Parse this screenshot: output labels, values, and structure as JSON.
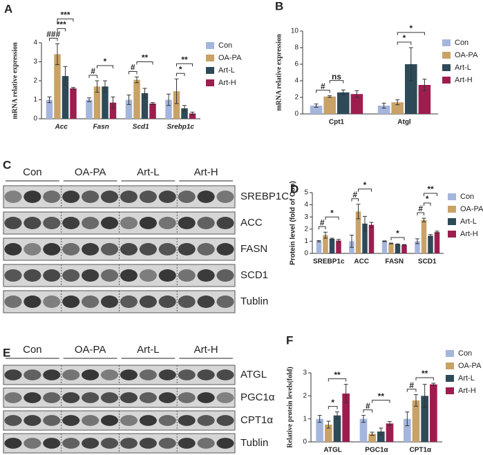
{
  "chart_data": [
    {
      "type": "bar",
      "panel": "A",
      "y_label": "mRNA relative expression",
      "italic_categories": true,
      "categories": [
        "Acc",
        "Fasn",
        "Scd1",
        "Srebp1c"
      ],
      "ylim": [
        0,
        4
      ],
      "yticks": [
        0,
        1,
        2,
        3,
        4
      ],
      "series": [
        {
          "name": "Con",
          "color": "#a4b6dc",
          "values": [
            1.0,
            1.0,
            1.0,
            1.0
          ],
          "errors": [
            0.15,
            0.1,
            0.25,
            0.3
          ]
        },
        {
          "name": "OA-PA",
          "color": "#c9a268",
          "values": [
            3.4,
            1.7,
            2.05,
            1.45
          ],
          "errors": [
            0.55,
            0.3,
            0.15,
            0.65
          ]
        },
        {
          "name": "Art-L",
          "color": "#2e4a58",
          "values": [
            2.25,
            1.7,
            1.35,
            0.55
          ],
          "errors": [
            0.5,
            0.3,
            0.25,
            0.15
          ]
        },
        {
          "name": "Art-H",
          "color": "#9e1d4f",
          "values": [
            1.6,
            0.85,
            0.8,
            0.28
          ],
          "errors": [
            0.05,
            0.3,
            0.05,
            0.07
          ]
        }
      ],
      "annotations": [
        {
          "text": "###",
          "category": 0,
          "from": 0,
          "to": 1
        },
        {
          "text": "***",
          "category": 0,
          "from": 1,
          "to": 2
        },
        {
          "text": "***",
          "category": 0,
          "from": 1,
          "to": 3
        },
        {
          "text": "#",
          "category": 1,
          "from": 0,
          "to": 1
        },
        {
          "text": "*",
          "category": 1,
          "from": 1,
          "to": 3
        },
        {
          "text": "#",
          "category": 2,
          "from": 0,
          "to": 1
        },
        {
          "text": "**",
          "category": 2,
          "from": 1,
          "to": 3
        },
        {
          "text": "*",
          "category": 3,
          "from": 1,
          "to": 2
        },
        {
          "text": "**",
          "category": 3,
          "from": 1,
          "to": 3
        }
      ]
    },
    {
      "type": "bar",
      "panel": "B",
      "y_label": "mRNA relative expression",
      "italic_categories": false,
      "categories": [
        "Cpt1",
        "Atgl"
      ],
      "ylim": [
        0,
        10
      ],
      "yticks": [
        0,
        2,
        4,
        6,
        8,
        10
      ],
      "series": [
        {
          "name": "Con",
          "color": "#a4b6dc",
          "values": [
            1.0,
            1.0
          ],
          "errors": [
            0.2,
            0.3
          ]
        },
        {
          "name": "OA-PA",
          "color": "#c9a268",
          "values": [
            2.1,
            1.4
          ],
          "errors": [
            0.1,
            0.3
          ]
        },
        {
          "name": "Art-L",
          "color": "#2e4a58",
          "values": [
            2.6,
            6.0
          ],
          "errors": [
            0.3,
            2.0
          ]
        },
        {
          "name": "Art-H",
          "color": "#9e1d4f",
          "values": [
            2.4,
            3.5
          ],
          "errors": [
            0.4,
            0.7
          ]
        }
      ],
      "annotations": [
        {
          "text": "#",
          "category": 0,
          "from": 0,
          "to": 1
        },
        {
          "text": "ns",
          "category": 0,
          "from": 1,
          "to": 2
        },
        {
          "text": "*",
          "category": 1,
          "from": 1,
          "to": 2
        },
        {
          "text": "*",
          "category": 1,
          "from": 1,
          "to": 3
        }
      ]
    },
    {
      "type": "bar",
      "panel": "D",
      "y_label": "Protein level (fold of Con)",
      "italic_categories": false,
      "categories": [
        "SREBP1c",
        "ACC",
        "FASN",
        "SCD1"
      ],
      "ylim": [
        0,
        5
      ],
      "yticks": [
        0,
        1,
        2,
        3,
        4,
        5
      ],
      "series": [
        {
          "name": "Con",
          "color": "#a4b6dc",
          "values": [
            1.0,
            1.0,
            1.0,
            1.0
          ],
          "errors": [
            0.05,
            0.5,
            0.03,
            0.2
          ]
        },
        {
          "name": "OA-PA",
          "color": "#c9a268",
          "values": [
            1.5,
            3.45,
            0.82,
            2.75
          ],
          "errors": [
            0.25,
            0.6,
            0.03,
            0.15
          ]
        },
        {
          "name": "Art-L",
          "color": "#2e4a58",
          "values": [
            1.2,
            2.45,
            0.75,
            1.45
          ],
          "errors": [
            0.05,
            0.6,
            0.03,
            0.1
          ]
        },
        {
          "name": "Art-H",
          "color": "#9e1d4f",
          "values": [
            1.05,
            2.35,
            0.7,
            1.75
          ],
          "errors": [
            0.1,
            0.2,
            0.03,
            0.08
          ]
        }
      ],
      "annotations": [
        {
          "text": "#",
          "category": 0,
          "from": 0,
          "to": 1
        },
        {
          "text": "*",
          "category": 0,
          "from": 1,
          "to": 3
        },
        {
          "text": "#",
          "category": 1,
          "from": 0,
          "to": 1
        },
        {
          "text": "*",
          "category": 1,
          "from": 1,
          "to": 3
        },
        {
          "text": "*",
          "category": 2,
          "from": 1,
          "to": 3
        },
        {
          "text": "#",
          "category": 3,
          "from": 0,
          "to": 1
        },
        {
          "text": "*",
          "category": 3,
          "from": 1,
          "to": 2
        },
        {
          "text": "**",
          "category": 3,
          "from": 1,
          "to": 3
        }
      ]
    },
    {
      "type": "bar",
      "panel": "F",
      "y_label": "Relative protein levels(fold)",
      "italic_categories": false,
      "categories": [
        "ATGL",
        "PGC1α",
        "CPT1α"
      ],
      "ylim": [
        0,
        3
      ],
      "yticks": [
        0,
        1,
        2,
        3
      ],
      "series": [
        {
          "name": "Con",
          "color": "#a4b6dc",
          "values": [
            1.0,
            1.0,
            1.0
          ],
          "errors": [
            0.15,
            0.15,
            0.3
          ]
        },
        {
          "name": "OA-PA",
          "color": "#c9a268",
          "values": [
            0.75,
            0.35,
            1.8
          ],
          "errors": [
            0.15,
            0.07,
            0.25
          ]
        },
        {
          "name": "Art-L",
          "color": "#2e4a58",
          "values": [
            1.15,
            0.45,
            2.0
          ],
          "errors": [
            0.15,
            0.15,
            0.5
          ]
        },
        {
          "name": "Art-H",
          "color": "#9e1d4f",
          "values": [
            2.1,
            0.8,
            2.5
          ],
          "errors": [
            0.4,
            0.08,
            0.05
          ]
        }
      ],
      "annotations": [
        {
          "text": "*",
          "category": 0,
          "from": 1,
          "to": 2
        },
        {
          "text": "**",
          "category": 0,
          "from": 1,
          "to": 3
        },
        {
          "text": "#",
          "category": 1,
          "from": 0,
          "to": 1
        },
        {
          "text": "**",
          "category": 1,
          "from": 1,
          "to": 3
        },
        {
          "text": "#",
          "category": 2,
          "from": 0,
          "to": 1
        },
        {
          "text": "**",
          "category": 2,
          "from": 1,
          "to": 3
        }
      ]
    }
  ],
  "blots": [
    {
      "panel": "C",
      "groups": [
        "Con",
        "OA-PA",
        "Art-L",
        "Art-H"
      ],
      "rows": [
        "SREBP1C",
        "ACC",
        "FASN",
        "SCD1",
        "Tublin"
      ]
    },
    {
      "panel": "E",
      "groups": [
        "Con",
        "OA-PA",
        "Art-L",
        "Art-H"
      ],
      "rows": [
        "ATGL",
        "PGC1α",
        "CPT1α",
        "Tublin"
      ]
    }
  ]
}
